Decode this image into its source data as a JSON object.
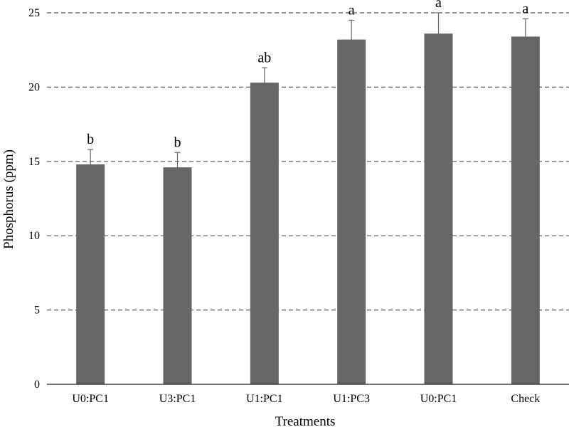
{
  "chart_data": {
    "type": "bar",
    "title": "",
    "xlabel": "Treatments",
    "ylabel": "Phosphorus (ppm)",
    "ylim": [
      0,
      25
    ],
    "yticks": [
      0,
      5,
      10,
      15,
      20,
      25
    ],
    "grid": "horizontal dashed",
    "categories": [
      "U0:PC1",
      "U3:PC1",
      "U1:PC1",
      "U1:PC3",
      "U0:PC1",
      "Check"
    ],
    "values": [
      14.8,
      14.6,
      20.3,
      23.2,
      23.6,
      23.4
    ],
    "error": [
      1.0,
      1.0,
      1.0,
      1.3,
      1.4,
      1.2
    ],
    "significance": [
      "b",
      "b",
      "ab",
      "a",
      "a",
      "a"
    ],
    "bar_color": "#666666",
    "error_color": "#666666",
    "grid_color": "#555555"
  }
}
